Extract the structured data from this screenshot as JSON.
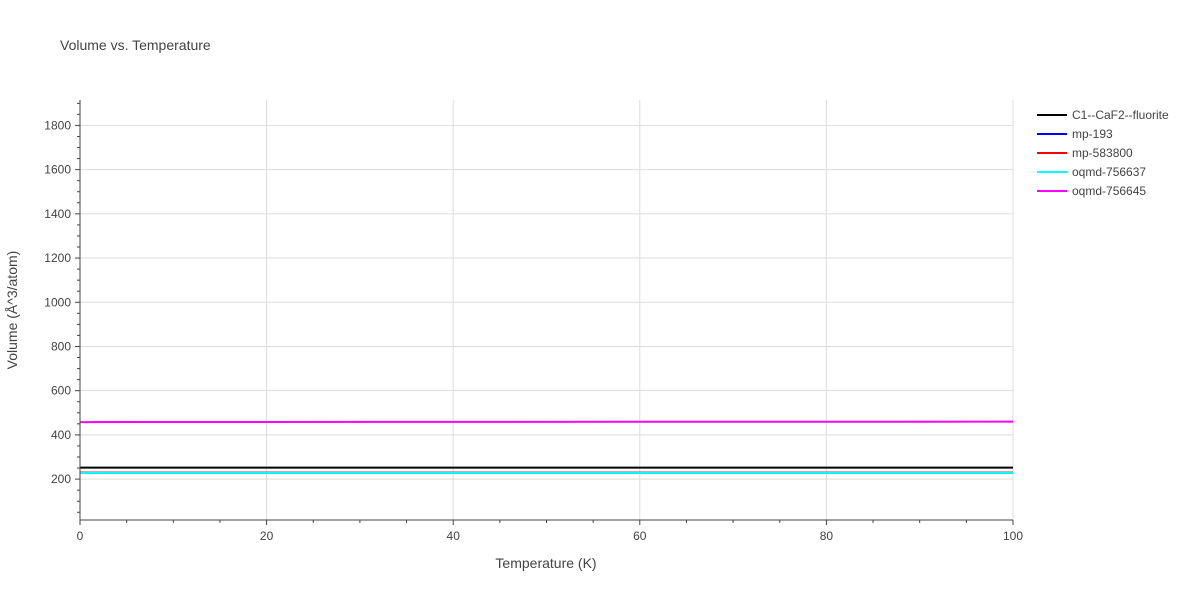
{
  "chart_data": {
    "type": "line",
    "title": "Volume vs. Temperature",
    "xlabel": "Temperature (K)",
    "ylabel": "Volume (Å^3/atom)",
    "xlim": [
      0,
      100
    ],
    "ylim": [
      15,
      1915
    ],
    "x_ticks": [
      0,
      20,
      40,
      60,
      80,
      100
    ],
    "y_ticks": [
      200,
      400,
      600,
      800,
      1000,
      1200,
      1400,
      1600,
      1800
    ],
    "x_tick_labels": [
      "0",
      "20",
      "40",
      "60",
      "80",
      "100"
    ],
    "y_tick_labels": [
      "200",
      "400",
      "600",
      "800",
      "1000",
      "1200",
      "1400",
      "1600",
      "1800"
    ],
    "grid": true,
    "legend_position": "right",
    "series": [
      {
        "name": "C1--CaF2--fluorite",
        "color": "#000000",
        "x": [
          0,
          100
        ],
        "y": [
          252,
          252
        ]
      },
      {
        "name": "mp-193",
        "color": "#0000ff",
        "x": [
          0,
          100
        ],
        "y": [
          229,
          229
        ]
      },
      {
        "name": "mp-583800",
        "color": "#ff0000",
        "x": [
          0,
          100
        ],
        "y": [
          230,
          230
        ]
      },
      {
        "name": "oqmd-756637",
        "color": "#00ffff",
        "x": [
          0,
          100
        ],
        "y": [
          228,
          228
        ]
      },
      {
        "name": "oqmd-756645",
        "color": "#ff00ff",
        "x": [
          0,
          100
        ],
        "y": [
          458,
          460
        ]
      }
    ]
  }
}
